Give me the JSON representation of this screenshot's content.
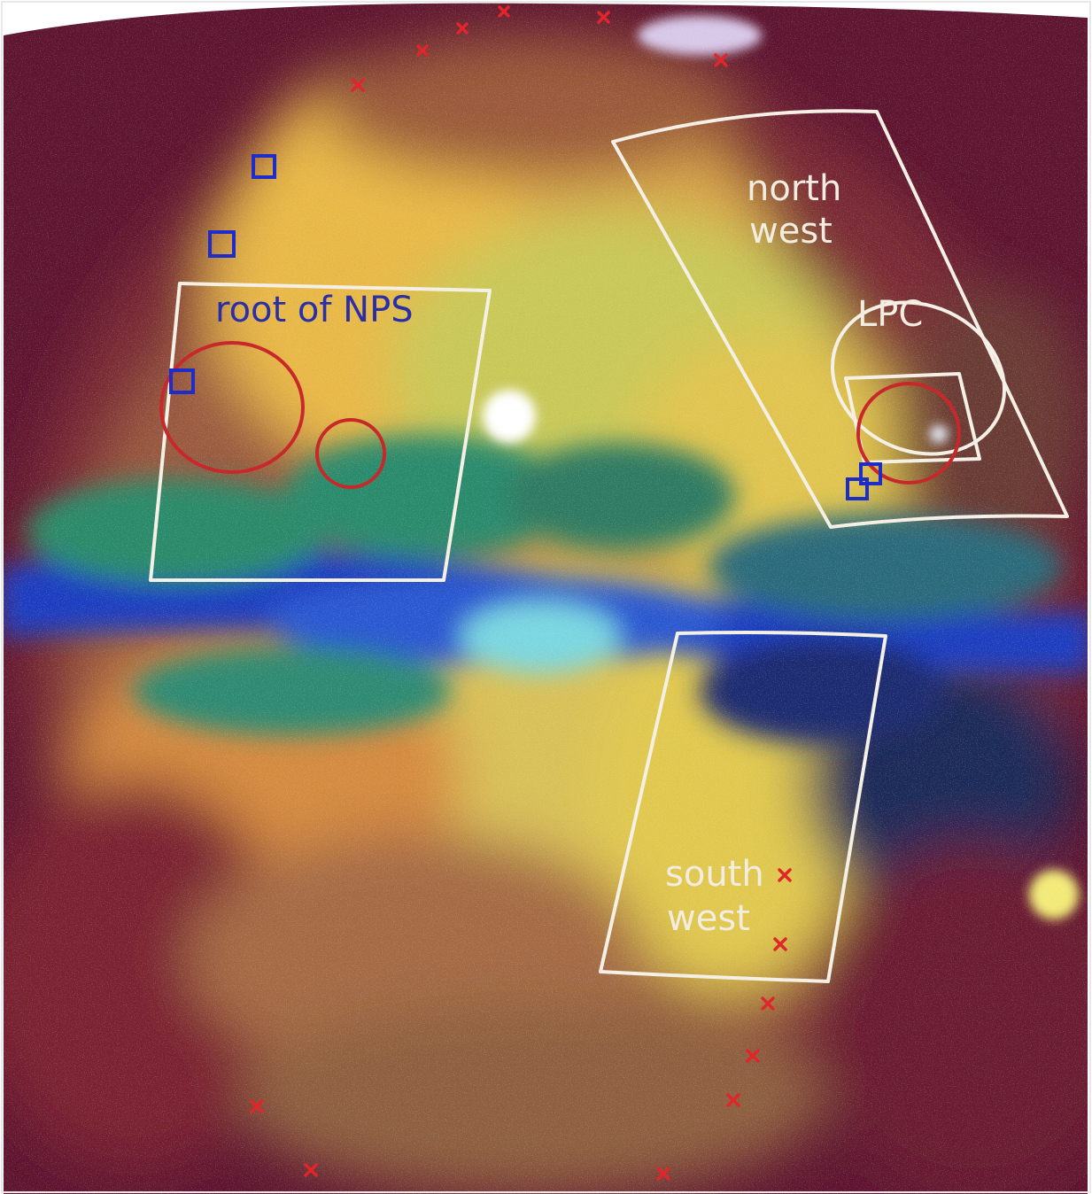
{
  "image": {
    "description_free": true,
    "colors": {
      "region_outline": "#f4f0e6",
      "circle_outline": "#c8282a",
      "square_marker": "#1e2cc8",
      "cross_marker": "#e0262a",
      "plane_blue": "#1a2fb8",
      "halo_red": "#6e1830",
      "bubble_yellow": "#e8cf5a"
    }
  },
  "labels": {
    "root_nps": "root of NPS",
    "north_west_1": "north",
    "north_west_2": "west",
    "lpc": "LPC",
    "south_west_1": "south",
    "south_west_2": "west"
  }
}
